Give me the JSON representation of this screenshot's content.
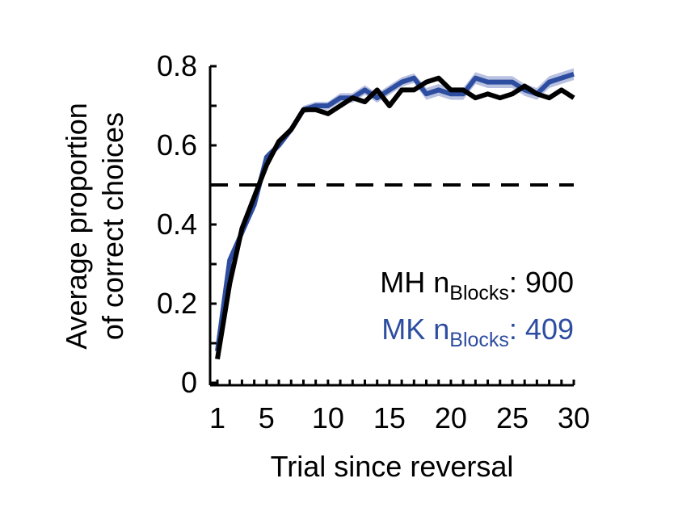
{
  "chart_data": {
    "type": "line",
    "xlabel": "Trial since reversal",
    "ylabel_lines": [
      "Average proportion",
      "of correct choices"
    ],
    "xlim": [
      1,
      30
    ],
    "ylim": [
      0,
      0.8
    ],
    "xticks": [
      1,
      5,
      10,
      15,
      20,
      25,
      30
    ],
    "yticks": [
      0,
      0.2,
      0.4,
      0.6,
      0.8
    ],
    "ytick_labels": [
      "0",
      "0.2",
      "0.4",
      "0.6",
      "0.8"
    ],
    "reference_line": {
      "y": 0.5,
      "style": "dashed"
    },
    "grid": false,
    "legend_position": "lower-right",
    "x": [
      1,
      2,
      3,
      4,
      5,
      6,
      7,
      8,
      9,
      10,
      11,
      12,
      13,
      14,
      15,
      16,
      17,
      18,
      19,
      20,
      21,
      22,
      23,
      24,
      25,
      26,
      27,
      28,
      29,
      30
    ],
    "series": [
      {
        "label_prefix": "MK n",
        "label_sub": "Blocks",
        "label_suffix": ": 409",
        "color": "#2d4da0",
        "band_color": "#b9c1e0",
        "values": [
          0.08,
          0.31,
          0.38,
          0.45,
          0.57,
          0.6,
          0.64,
          0.69,
          0.7,
          0.7,
          0.72,
          0.72,
          0.74,
          0.72,
          0.74,
          0.76,
          0.77,
          0.73,
          0.74,
          0.73,
          0.73,
          0.77,
          0.76,
          0.76,
          0.76,
          0.74,
          0.73,
          0.76,
          0.77,
          0.78
        ],
        "errors": [
          0.01,
          0.01,
          0.01,
          0.01,
          0.01,
          0.01,
          0.01,
          0.01,
          0.01,
          0.01,
          0.012,
          0.012,
          0.012,
          0.012,
          0.012,
          0.012,
          0.012,
          0.015,
          0.015,
          0.015,
          0.015,
          0.015,
          0.015,
          0.015,
          0.015,
          0.015,
          0.015,
          0.015,
          0.015,
          0.015
        ]
      },
      {
        "label_prefix": "MH n",
        "label_sub": "Blocks",
        "label_suffix": ": 900",
        "color": "#000000",
        "values": [
          0.06,
          0.25,
          0.39,
          0.47,
          0.55,
          0.61,
          0.64,
          0.69,
          0.69,
          0.68,
          0.7,
          0.72,
          0.71,
          0.74,
          0.7,
          0.74,
          0.74,
          0.76,
          0.77,
          0.74,
          0.74,
          0.72,
          0.73,
          0.72,
          0.73,
          0.75,
          0.73,
          0.72,
          0.74,
          0.72
        ]
      }
    ]
  }
}
